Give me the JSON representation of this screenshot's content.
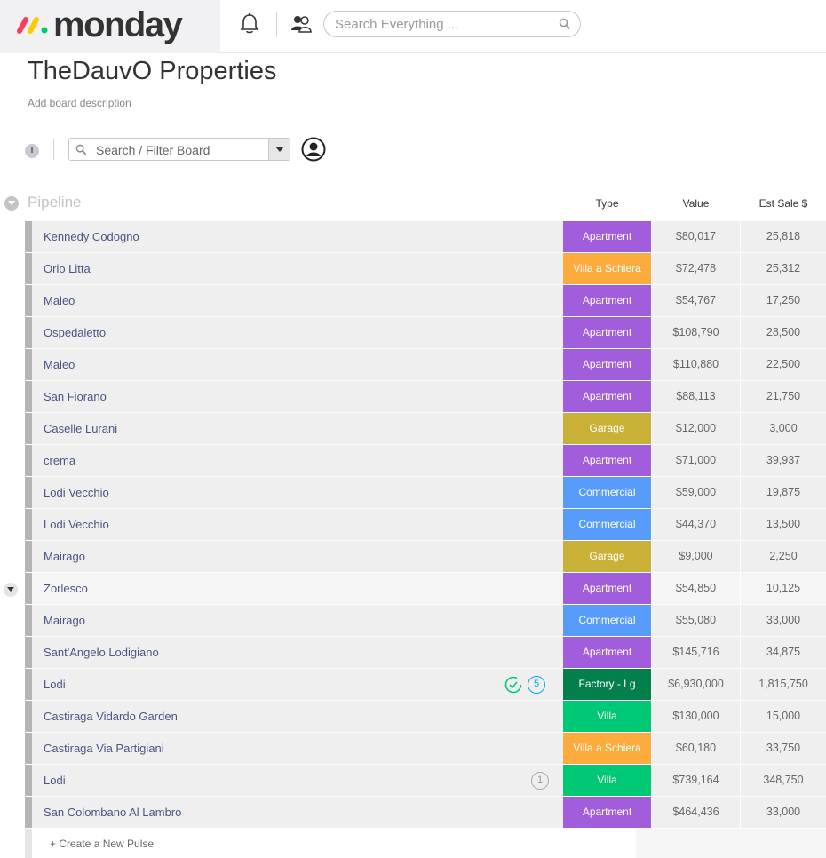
{
  "app": {
    "logo_text": "monday",
    "brand_colors": [
      "#ff3d57",
      "#ffcb00",
      "#00ca72"
    ]
  },
  "topbar": {
    "search_placeholder": "Search Everything ..."
  },
  "board": {
    "title": "TheDauvO Properties",
    "description": "Add board description",
    "info_label": "I",
    "filter_placeholder": "Search / Filter Board"
  },
  "group": {
    "title": "Pipeline",
    "columns": [
      "Type",
      "Value",
      "Est Sale $"
    ]
  },
  "type_colors": {
    "Apartment": "#a25ddc",
    "Villa a Schiera": "#fdab3d",
    "Garage": "#c9b138",
    "Commercial": "#579bfc",
    "Factory - Lg": "#037f4c",
    "Villa": "#00c875"
  },
  "rows": [
    {
      "name": "Kennedy Codogno",
      "type": "Apartment",
      "value": "$80,017",
      "est": "25,818"
    },
    {
      "name": "Orio Litta",
      "type": "Villa a Schiera",
      "value": "$72,478",
      "est": "25,312"
    },
    {
      "name": "Maleo",
      "type": "Apartment",
      "value": "$54,767",
      "est": "17,250"
    },
    {
      "name": "Ospedaletto",
      "type": "Apartment",
      "value": "$108,790",
      "est": "28,500"
    },
    {
      "name": "Maleo",
      "type": "Apartment",
      "value": "$110,880",
      "est": "22,500"
    },
    {
      "name": "San Fiorano",
      "type": "Apartment",
      "value": "$88,113",
      "est": "21,750"
    },
    {
      "name": "Caselle Lurani",
      "type": "Garage",
      "value": "$12,000",
      "est": "3,000"
    },
    {
      "name": "crema",
      "type": "Apartment",
      "value": "$71,000",
      "est": "39,937"
    },
    {
      "name": "Lodi Vecchio",
      "type": "Commercial",
      "value": "$59,000",
      "est": "19,875"
    },
    {
      "name": "Lodi Vecchio",
      "type": "Commercial",
      "value": "$44,370",
      "est": "13,500"
    },
    {
      "name": "Mairago",
      "type": "Garage",
      "value": "$9,000",
      "est": "2,250"
    },
    {
      "name": "Zorlesco",
      "type": "Apartment",
      "value": "$54,850",
      "est": "10,125"
    },
    {
      "name": "Mairago",
      "type": "Commercial",
      "value": "$55,080",
      "est": "33,000"
    },
    {
      "name": "Sant'Angelo Lodigiano",
      "type": "Apartment",
      "value": "$145,716",
      "est": "34,875"
    },
    {
      "name": "Lodi",
      "type": "Factory - Lg",
      "value": "$6,930,000",
      "est": "1,815,750",
      "updates": "5"
    },
    {
      "name": "Castiraga Vidardo Garden",
      "type": "Villa",
      "value": "$130,000",
      "est": "15,000"
    },
    {
      "name": "Castiraga Via Partigiani",
      "type": "Villa a Schiera",
      "value": "$60,180",
      "est": "33,750"
    },
    {
      "name": "Lodi",
      "type": "Villa",
      "value": "$739,164",
      "est": "348,750",
      "updates": "1"
    },
    {
      "name": "San Colombano Al Lambro",
      "type": "Apartment",
      "value": "$464,436",
      "est": "33,000"
    }
  ],
  "new_pulse_label": "+ Create a New Pulse"
}
